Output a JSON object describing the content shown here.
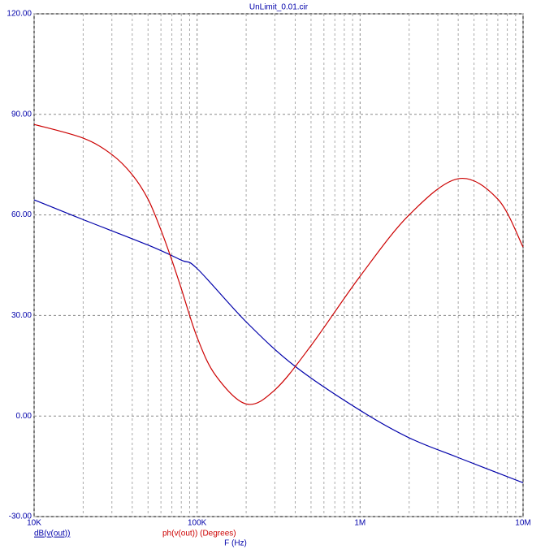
{
  "chart_data": {
    "type": "line",
    "title": "UnLimit_0.01.cir",
    "xlabel": "F (Hz)",
    "xscale": "log",
    "xlim": [
      10000,
      10000000
    ],
    "ylim": [
      -30,
      120
    ],
    "xticks": [
      {
        "value": 10000,
        "label": "10K"
      },
      {
        "value": 100000,
        "label": "100K"
      },
      {
        "value": 1000000,
        "label": "1M"
      },
      {
        "value": 10000000,
        "label": "10M"
      }
    ],
    "xminorticks": [
      20000,
      30000,
      40000,
      50000,
      60000,
      70000,
      80000,
      90000,
      200000,
      300000,
      400000,
      500000,
      600000,
      700000,
      800000,
      900000,
      2000000,
      3000000,
      4000000,
      5000000,
      6000000,
      7000000,
      8000000,
      9000000
    ],
    "yticks": [
      {
        "value": -30,
        "label": "-30.00"
      },
      {
        "value": 0,
        "label": "0.00"
      },
      {
        "value": 30,
        "label": "30.00"
      },
      {
        "value": 60,
        "label": "60.00"
      },
      {
        "value": 90,
        "label": "90.00"
      },
      {
        "value": 120,
        "label": "120.00"
      }
    ],
    "grid": true,
    "series": [
      {
        "name": "dB(v(out))",
        "color": "#0000aa",
        "x": [
          10000,
          20000,
          50000,
          80000,
          100000,
          200000,
          400000,
          1000000,
          2000000,
          4000000,
          10000000
        ],
        "values": [
          64.5,
          58.6,
          51,
          46.5,
          44,
          28.1,
          14.8,
          1.7,
          -6.5,
          -12.4,
          -19.9
        ]
      },
      {
        "name": "ph(v(out)) (Degrees)",
        "color": "#cc0000",
        "x": [
          10000,
          20000,
          30000,
          40000,
          50000,
          60000,
          70000,
          80000,
          100000,
          130000,
          200000,
          300000,
          500000,
          1000000,
          2000000,
          4000000,
          7000000,
          10000000
        ],
        "values": [
          87,
          82.9,
          78,
          72,
          64.7,
          55.5,
          46.5,
          38,
          23.5,
          12.1,
          3.6,
          7.8,
          21,
          41.7,
          60,
          70.8,
          64.7,
          50.4
        ]
      }
    ]
  }
}
